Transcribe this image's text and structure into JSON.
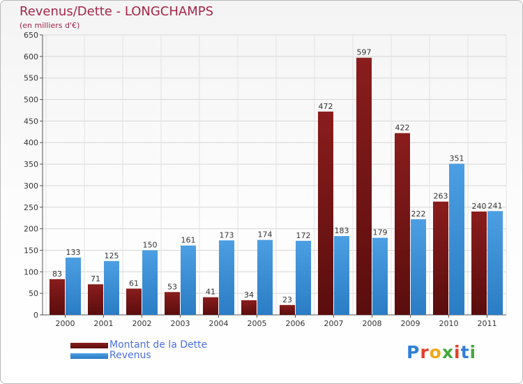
{
  "colors": {
    "debt": "#8a1d1d",
    "debt_dark": "#5a0d0d",
    "revenue": "#4d9fe3",
    "revenue_dark": "#2a7cc4",
    "title": "#a3264a",
    "legend_text": "#4a6ee0"
  },
  "chart_data": {
    "type": "bar",
    "title": "Revenus/Dette - LONGCHAMPS",
    "subtitle": "(en milliers d'€)",
    "xlabel": "",
    "ylabel": "",
    "ylim": [
      0,
      650
    ],
    "yticks": [
      "0",
      "50",
      "100",
      "150",
      "200",
      "250",
      "300",
      "350",
      "400",
      "450",
      "500",
      "550",
      "600",
      "650"
    ],
    "categories": [
      "2000",
      "2001",
      "2002",
      "2003",
      "2004",
      "2005",
      "2006",
      "2007",
      "2008",
      "2009",
      "2010",
      "2011"
    ],
    "series": [
      {
        "name": "Montant de la Dette",
        "values": [
          83,
          71,
          61,
          53,
          41,
          34,
          23,
          472,
          597,
          422,
          263,
          240
        ]
      },
      {
        "name": "Revenus",
        "values": [
          133,
          125,
          150,
          161,
          173,
          174,
          172,
          183,
          179,
          222,
          351,
          241
        ]
      }
    ],
    "grid": true,
    "legend": "bottom-left"
  },
  "legend": {
    "debt_label": "Montant de la Dette",
    "revenue_label": "Revenus"
  },
  "logo": {
    "text": "Proxiti"
  }
}
